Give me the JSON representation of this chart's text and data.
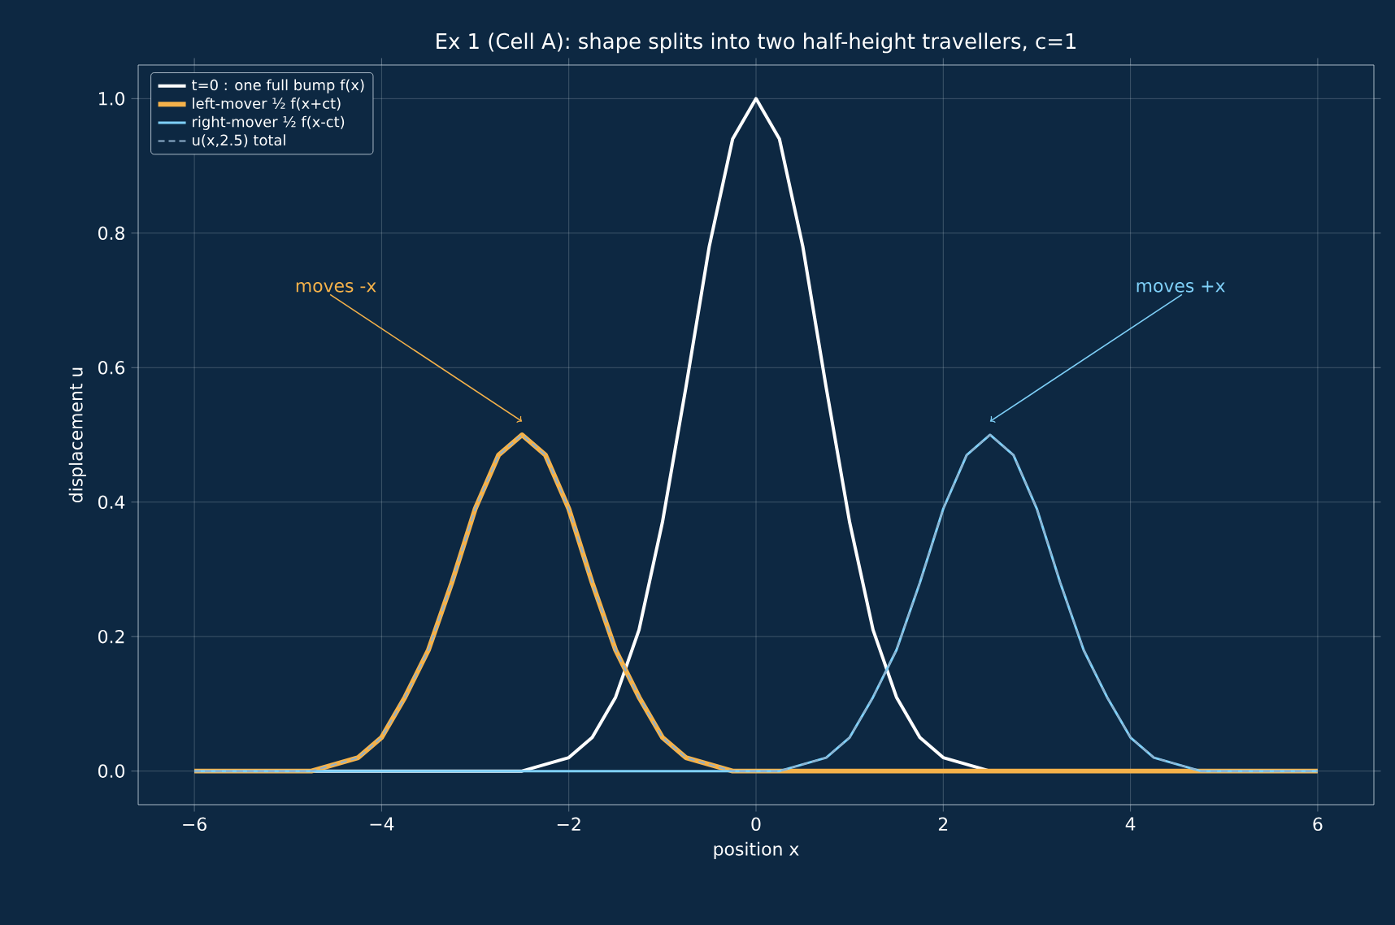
{
  "chart_data": {
    "type": "line",
    "title": "Ex 1 (Cell A): shape splits into two half-height travellers, c=1",
    "xlabel": "position  x",
    "ylabel": "displacement  u",
    "x": [
      -6,
      -5.75,
      -5.5,
      -5.25,
      -5,
      -4.75,
      -4.5,
      -4.25,
      -4,
      -3.75,
      -3.5,
      -3.25,
      -3,
      -2.75,
      -2.5,
      -2.25,
      -2,
      -1.75,
      -1.5,
      -1.25,
      -1,
      -0.75,
      -0.5,
      -0.25,
      0,
      0.25,
      0.5,
      0.75,
      1,
      1.25,
      1.5,
      1.75,
      2,
      2.25,
      2.5,
      2.75,
      3,
      3.25,
      3.5,
      3.75,
      4,
      4.25,
      4.5,
      4.75,
      5,
      5.25,
      5.5,
      5.75,
      6
    ],
    "series": [
      {
        "name": "t=0 : one full bump  f(x)",
        "color": "#ffffff",
        "line_style": "solid",
        "values": [
          0,
          0,
          0,
          0,
          0,
          0,
          0,
          0,
          0,
          0,
          0,
          0,
          0,
          0,
          0,
          0.01,
          0.02,
          0.05,
          0.11,
          0.21,
          0.37,
          0.57,
          0.78,
          0.94,
          1,
          0.94,
          0.78,
          0.57,
          0.37,
          0.21,
          0.11,
          0.05,
          0.02,
          0.01,
          0,
          0,
          0,
          0,
          0,
          0,
          0,
          0,
          0,
          0,
          0,
          0,
          0,
          0,
          0
        ]
      },
      {
        "name": "right-mover  ½ f(x-ct)",
        "color": "#7fd0f8",
        "line_style": "solid",
        "values": [
          0,
          0,
          0,
          0,
          0,
          0,
          0,
          0,
          0,
          0,
          0,
          0,
          0,
          0,
          0,
          0,
          0,
          0,
          0,
          0,
          0,
          0,
          0,
          0,
          0,
          0,
          0.01,
          0.02,
          0.05,
          0.11,
          0.18,
          0.28,
          0.39,
          0.47,
          0.5,
          0.47,
          0.39,
          0.28,
          0.18,
          0.11,
          0.05,
          0.02,
          0.01,
          0,
          0,
          0,
          0,
          0,
          0
        ]
      },
      {
        "name": "left-mover  ½ f(x+ct)",
        "color": "#f5b24a",
        "line_style": "solid",
        "values": [
          0,
          0,
          0,
          0,
          0,
          0,
          0.01,
          0.02,
          0.05,
          0.11,
          0.18,
          0.28,
          0.39,
          0.47,
          0.5,
          0.47,
          0.39,
          0.28,
          0.18,
          0.11,
          0.05,
          0.02,
          0.01,
          0,
          0,
          0,
          0,
          0,
          0,
          0,
          0,
          0,
          0,
          0,
          0,
          0,
          0,
          0,
          0,
          0,
          0,
          0,
          0,
          0,
          0,
          0,
          0,
          0,
          0
        ]
      },
      {
        "name": "u(x,2.5) total",
        "color": "#8fb0cc",
        "line_style": "dashed",
        "values": [
          0,
          0,
          0,
          0,
          0,
          0,
          0.01,
          0.02,
          0.05,
          0.11,
          0.18,
          0.28,
          0.39,
          0.47,
          0.5,
          0.47,
          0.39,
          0.28,
          0.18,
          0.11,
          0.05,
          0.02,
          0.01,
          0,
          0,
          0,
          0.01,
          0.02,
          0.05,
          0.11,
          0.18,
          0.28,
          0.39,
          0.47,
          0.5,
          0.47,
          0.39,
          0.28,
          0.18,
          0.11,
          0.05,
          0.02,
          0.01,
          0,
          0,
          0,
          0,
          0,
          0
        ]
      }
    ],
    "xlim": [
      -6.6,
      6.6
    ],
    "ylim": [
      -0.05,
      1.05
    ],
    "xticks": [
      {
        "value": -6,
        "label": "−6"
      },
      {
        "value": -4,
        "label": "−4"
      },
      {
        "value": -2,
        "label": "−2"
      },
      0,
      2,
      4,
      6
    ],
    "yticks": [
      {
        "value": 0,
        "label": "0.0"
      },
      {
        "value": 0.2,
        "label": "0.2"
      },
      {
        "value": 0.4,
        "label": "0.4"
      },
      {
        "value": 0.6,
        "label": "0.6"
      },
      {
        "value": 0.8,
        "label": "0.8"
      },
      {
        "value": 1,
        "label": "1.0"
      }
    ],
    "annotations": [
      {
        "text": "moves -x",
        "x": -2.5,
        "y": 0.52
      },
      {
        "text": "moves +x",
        "x": 2.5,
        "y": 0.52
      }
    ],
    "grid": true,
    "legend": "top left",
    "marker": "none"
  }
}
